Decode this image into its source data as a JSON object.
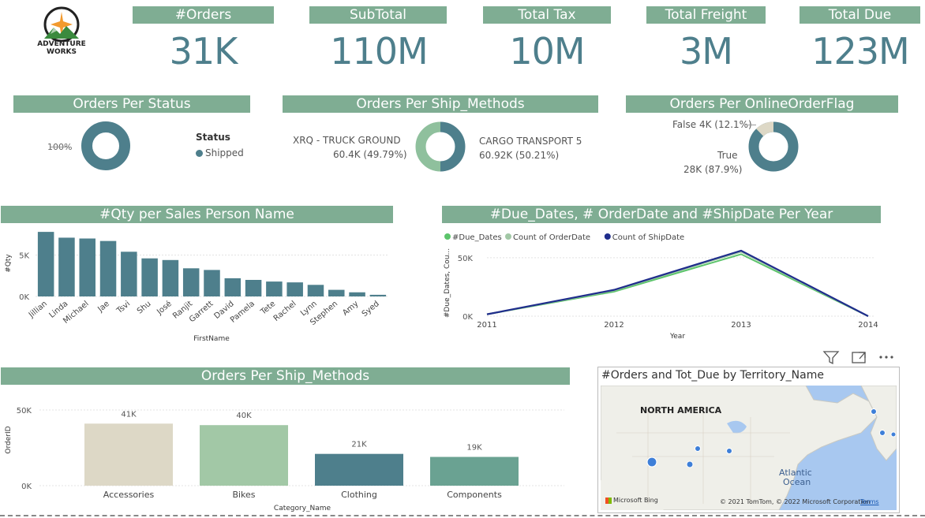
{
  "kpis": [
    {
      "title": "#Orders",
      "value": "31K"
    },
    {
      "title": "SubTotal",
      "value": "110M"
    },
    {
      "title": "Total Tax",
      "value": "10M"
    },
    {
      "title": "Total Freight",
      "value": "3M"
    },
    {
      "title": "Total Due",
      "value": "123M"
    }
  ],
  "logo": {
    "line1": "ADVENTURE",
    "line2": "WORKS"
  },
  "status_panel": {
    "title": "Orders Per Status",
    "label": "100%",
    "legend_title": "Status",
    "legend_item": "Shipped"
  },
  "ship_panel": {
    "title": "Orders Per Ship_Methods",
    "left_name": "XRQ - TRUCK GROUND",
    "left_value": "60.4K (49.79%)",
    "right_name": "CARGO TRANSPORT 5",
    "right_value": "60.92K (50.21%)"
  },
  "online_panel": {
    "title": "Orders Per OnlineOrderFlag",
    "false_label": "False 4K (12.1%)",
    "true_label_1": "True",
    "true_label_2": "28K (87.9%)"
  },
  "sales_panel": {
    "title": "#Qty per Sales Person Name"
  },
  "dates_panel": {
    "title": "#Due_Dates, # OrderDate and #ShipDate Per Year"
  },
  "category_panel": {
    "title": "Orders Per Ship_Methods"
  },
  "map_panel": {
    "title": "#Orders and Tot_Due by Territory_Name",
    "region": "NORTH AMERICA",
    "ocean_1": "Atlantic",
    "ocean_2": "Ocean",
    "bing": "Microsoft Bing",
    "credit": "© 2021 TomTom, © 2022 Microsoft Corporation",
    "terms": "Terms"
  },
  "colors": {
    "header": "#7fad93",
    "teal": "#4e7f8c",
    "lightgreen": "#a2c8a6",
    "beige": "#ddd8c6",
    "seafoam": "#6aa292",
    "green_line": "#5cc46b",
    "navy": "#1f2d8c"
  },
  "chart_data": [
    {
      "type": "donut",
      "title": "Orders Per Status",
      "series": [
        {
          "name": "Shipped",
          "values": [
            100
          ]
        }
      ],
      "labels": [
        "100%"
      ]
    },
    {
      "type": "donut",
      "title": "Orders Per Ship_Methods",
      "categories": [
        "XRQ - TRUCK GROUND",
        "CARGO TRANSPORT 5"
      ],
      "values": [
        60.4,
        60.92
      ]
    },
    {
      "type": "donut",
      "title": "Orders Per OnlineOrderFlag",
      "categories": [
        "False",
        "True"
      ],
      "values": [
        4,
        28
      ]
    },
    {
      "type": "bar",
      "title": "#Qty per Sales Person Name",
      "xlabel": "FirstName",
      "ylabel": "#Qty",
      "ylim": [
        0,
        8000
      ],
      "yticks": [
        "0K",
        "5K"
      ],
      "categories": [
        "Jillian",
        "Linda",
        "Michael",
        "Jae",
        "Tsvi",
        "Shu",
        "José",
        "Ranjit",
        "Garrett",
        "David",
        "Pamela",
        "Tete",
        "Rachel",
        "Lynn",
        "Stephen",
        "Amy",
        "Syed"
      ],
      "values": [
        7800,
        7100,
        7000,
        6700,
        5400,
        4600,
        4400,
        3400,
        3200,
        2200,
        2000,
        1800,
        1700,
        1400,
        800,
        500,
        200
      ]
    },
    {
      "type": "line",
      "title": "#Due_Dates, # OrderDate and #ShipDate Per Year",
      "xlabel": "Year",
      "ylabel": "#Due_Dates, Cou...",
      "ylim": [
        0,
        60000
      ],
      "yticks": [
        "0K",
        "50K"
      ],
      "x": [
        "2011",
        "2012",
        "2013",
        "2014"
      ],
      "series": [
        {
          "name": "#Due_Dates",
          "values": [
            1600,
            21000,
            53000,
            0
          ]
        },
        {
          "name": "Count of OrderDate",
          "values": [
            1600,
            22000,
            55000,
            0
          ]
        },
        {
          "name": "Count of ShipDate",
          "values": [
            1600,
            22500,
            56000,
            0
          ]
        }
      ]
    },
    {
      "type": "bar",
      "title": "Orders Per Ship_Methods",
      "xlabel": "Category_Name",
      "ylabel": "OrderID",
      "ylim": [
        0,
        50000
      ],
      "yticks": [
        "0K",
        "50K"
      ],
      "categories": [
        "Accessories",
        "Bikes",
        "Clothing",
        "Components"
      ],
      "values": [
        41000,
        40000,
        21000,
        19000
      ],
      "data_labels": [
        "41K",
        "40K",
        "21K",
        "19K"
      ]
    }
  ]
}
